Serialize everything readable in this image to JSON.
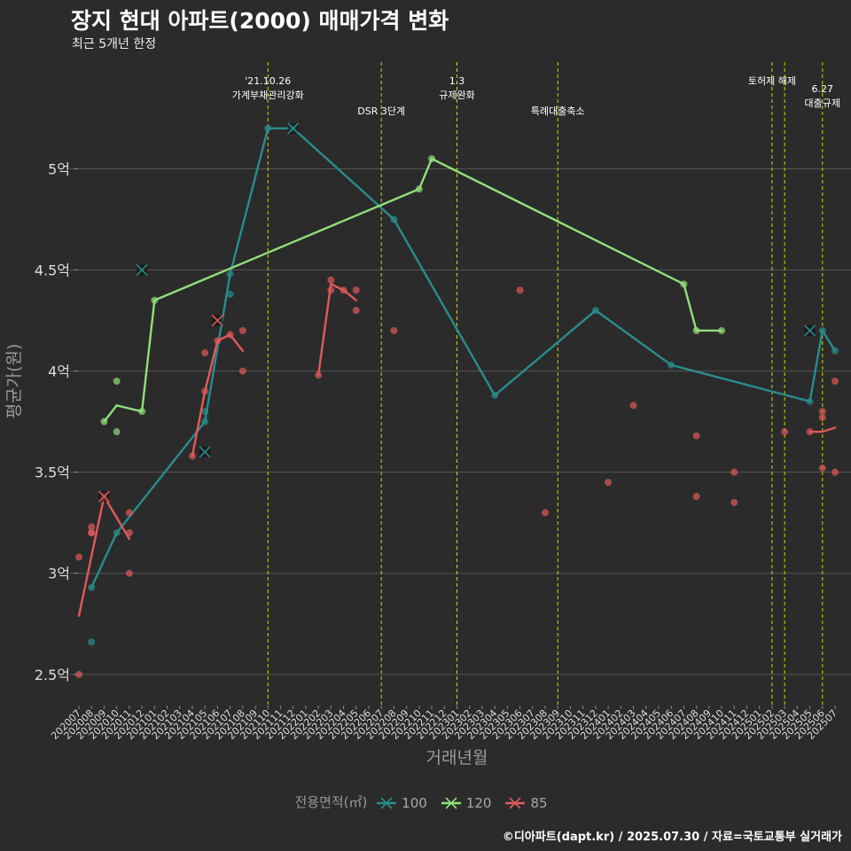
{
  "page": {
    "title": "장지 현대 아파트(2000) 매매가격 변화",
    "subtitle": "최근 5개년 한정",
    "caption": "©디아파트(dapt.kr) / 2025.07.30 / 자료=국토교통부 실거래가"
  },
  "colors": {
    "background": "#2b2b2b",
    "grid": "#555555",
    "event_line": "#d4d400",
    "series_100": "#2a8c8c",
    "series_120": "#90e07a",
    "series_85": "#e05a5a"
  },
  "chart_data": {
    "type": "line",
    "title": "장지 현대 아파트(2000) 매매가격 변화",
    "subtitle": "최근 5개년 한정",
    "xlabel": "거래년월",
    "ylabel": "평균가(원)",
    "ylim": [
      2.35,
      5.55
    ],
    "y_ticks": [
      2.5,
      3,
      3.5,
      4,
      4.5,
      5
    ],
    "y_tick_labels": [
      "2.5억",
      "3억",
      "3.5억",
      "4억",
      "4.5억",
      "5억"
    ],
    "grid": true,
    "legend_position": "bottom",
    "legend_title": "전용면적(㎡)",
    "x_categories": [
      "202007",
      "202008",
      "202009",
      "202010",
      "202011",
      "202012",
      "202101",
      "202102",
      "202103",
      "202104",
      "202105",
      "202106",
      "202107",
      "202108",
      "202109",
      "202110",
      "202111",
      "202112",
      "202201",
      "202202",
      "202203",
      "202204",
      "202205",
      "202206",
      "202207",
      "202208",
      "202209",
      "202210",
      "202211",
      "202212",
      "202301",
      "202302",
      "202303",
      "202304",
      "202305",
      "202306",
      "202307",
      "202308",
      "202309",
      "202310",
      "202311",
      "202312",
      "202401",
      "202402",
      "202403",
      "202404",
      "202405",
      "202406",
      "202407",
      "202408",
      "202409",
      "202410",
      "202411",
      "202412",
      "202501",
      "202502",
      "202503",
      "202504",
      "202505",
      "202506",
      "202507"
    ],
    "events": [
      {
        "x": "202110",
        "label": "'21.10.26\n가계부채관리강화",
        "label_row": 0
      },
      {
        "x": "202207",
        "label": "DSR 3단계",
        "label_row": 1
      },
      {
        "x": "202301",
        "label": "1.3\n규제완화",
        "label_row": 0
      },
      {
        "x": "202309",
        "label": "특례대출축소",
        "label_row": 1
      },
      {
        "x": "202502",
        "label": "토허제 해제",
        "label_row": 0
      },
      {
        "x": "202503",
        "label": "",
        "label_row": 0
      },
      {
        "x": "202506",
        "label": "6.27\n대출규제",
        "label_row": 1
      }
    ],
    "series": [
      {
        "name": "100",
        "color": "#2a8c8c",
        "line": [
          [
            "202008",
            2.93
          ],
          [
            "202010",
            3.2
          ],
          [
            "202105",
            3.75
          ],
          [
            "202107",
            4.48
          ],
          [
            "202110",
            5.2
          ],
          [
            "202112",
            5.2
          ],
          [
            "202208",
            4.75
          ],
          [
            "202304",
            3.88
          ],
          [
            "202312",
            4.3
          ],
          [
            "202406",
            4.03
          ],
          [
            "202505",
            3.85
          ],
          [
            "202506",
            4.2
          ],
          [
            "202507",
            4.1
          ]
        ],
        "points": [
          [
            "202008",
            2.66
          ],
          [
            "202008",
            2.93
          ],
          [
            "202010",
            3.2
          ],
          [
            "202105",
            3.8
          ],
          [
            "202105",
            3.75
          ],
          [
            "202107",
            4.38
          ],
          [
            "202107",
            4.48
          ],
          [
            "202110",
            5.2
          ],
          [
            "202112",
            5.2
          ],
          [
            "202208",
            4.75
          ],
          [
            "202304",
            3.88
          ],
          [
            "202312",
            4.3
          ],
          [
            "202406",
            4.03
          ],
          [
            "202505",
            3.85
          ],
          [
            "202506",
            4.2
          ],
          [
            "202507",
            4.1
          ]
        ],
        "cancelled": [
          [
            "202012",
            4.5
          ],
          [
            "202105",
            3.6
          ],
          [
            "202112",
            5.2
          ],
          [
            "202505",
            4.2
          ]
        ]
      },
      {
        "name": "120",
        "color": "#90e07a",
        "line": [
          [
            "202009",
            3.75
          ],
          [
            "202010",
            3.83
          ],
          [
            "202012",
            3.8
          ],
          [
            "202101",
            4.35
          ],
          [
            "202210",
            4.9
          ],
          [
            "202211",
            5.05
          ],
          [
            "202407",
            4.43
          ],
          [
            "202408",
            4.2
          ],
          [
            "202410",
            4.2
          ]
        ],
        "points": [
          [
            "202009",
            3.75
          ],
          [
            "202010",
            3.95
          ],
          [
            "202010",
            3.7
          ],
          [
            "202012",
            3.8
          ],
          [
            "202101",
            4.35
          ],
          [
            "202210",
            4.9
          ],
          [
            "202211",
            5.05
          ],
          [
            "202407",
            4.43
          ],
          [
            "202408",
            4.2
          ],
          [
            "202410",
            4.2
          ]
        ],
        "cancelled": []
      },
      {
        "name": "85",
        "color": "#e05a5a",
        "line": [
          [
            "202007",
            2.79
          ],
          [
            "202009",
            3.38
          ],
          [
            "202011",
            3.17
          ]
        ],
        "line2": [
          [
            "202104",
            3.58
          ],
          [
            "202105",
            3.9
          ],
          [
            "202106",
            4.15
          ],
          [
            "202107",
            4.18
          ],
          [
            "202108",
            4.1
          ]
        ],
        "line3": [
          [
            "202202",
            3.98
          ],
          [
            "202203",
            4.43
          ],
          [
            "202204",
            4.4
          ],
          [
            "202205",
            4.35
          ]
        ],
        "line4": [
          [
            "202505",
            3.7
          ],
          [
            "202506",
            3.7
          ],
          [
            "202507",
            3.72
          ]
        ],
        "points": [
          [
            "202007",
            3.08
          ],
          [
            "202007",
            2.5
          ],
          [
            "202008",
            3.23
          ],
          [
            "202008",
            3.2
          ],
          [
            "202008",
            3.2
          ],
          [
            "202009",
            3.38
          ],
          [
            "202011",
            3.3
          ],
          [
            "202011",
            3.2
          ],
          [
            "202011",
            3.0
          ],
          [
            "202104",
            3.58
          ],
          [
            "202105",
            3.9
          ],
          [
            "202105",
            4.09
          ],
          [
            "202106",
            4.15
          ],
          [
            "202107",
            4.18
          ],
          [
            "202108",
            4.2
          ],
          [
            "202108",
            4.0
          ],
          [
            "202202",
            3.98
          ],
          [
            "202203",
            4.45
          ],
          [
            "202203",
            4.4
          ],
          [
            "202204",
            4.4
          ],
          [
            "202205",
            4.4
          ],
          [
            "202205",
            4.3
          ],
          [
            "202208",
            4.2
          ],
          [
            "202306",
            4.4
          ],
          [
            "202308",
            3.3
          ],
          [
            "202401",
            3.45
          ],
          [
            "202403",
            3.83
          ],
          [
            "202408",
            3.68
          ],
          [
            "202408",
            3.38
          ],
          [
            "202411",
            3.5
          ],
          [
            "202411",
            3.35
          ],
          [
            "202503",
            3.7
          ],
          [
            "202505",
            3.7
          ],
          [
            "202506",
            3.8
          ],
          [
            "202506",
            3.77
          ],
          [
            "202506",
            3.52
          ],
          [
            "202507",
            3.95
          ],
          [
            "202507",
            3.5
          ]
        ],
        "cancelled": [
          [
            "202009",
            3.38
          ],
          [
            "202106",
            4.25
          ]
        ]
      }
    ]
  }
}
